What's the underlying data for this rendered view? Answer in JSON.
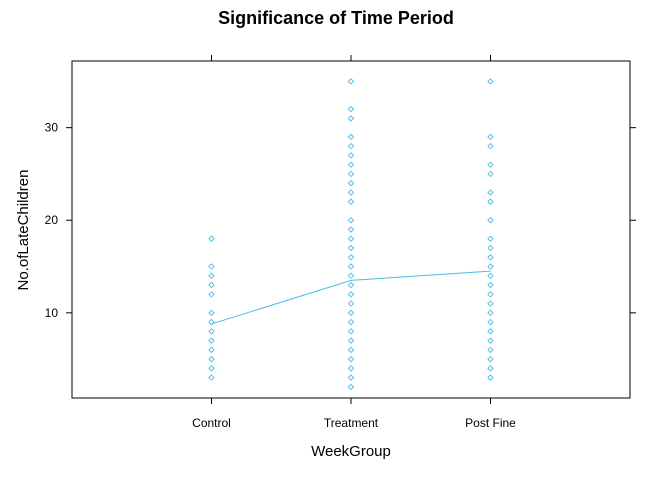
{
  "chart_data": {
    "type": "scatter",
    "title": "Significance of Time Period",
    "xlabel": "WeekGroup",
    "ylabel": "No.ofLateChildren",
    "categories": [
      "Control",
      "Treatment",
      "Post Fine"
    ],
    "ylim": [
      0.8,
      37.2
    ],
    "yticks": [
      10,
      20,
      30
    ],
    "grid": false,
    "color": "#4DBAE8",
    "points": [
      {
        "category": "Control",
        "values": [
          3,
          4,
          5,
          6,
          7,
          8,
          9,
          10,
          12,
          13,
          14,
          15,
          18
        ]
      },
      {
        "category": "Treatment",
        "values": [
          2,
          3,
          4,
          5,
          6,
          7,
          8,
          9,
          10,
          11,
          12,
          13,
          14,
          15,
          16,
          17,
          18,
          19,
          20,
          22,
          23,
          24,
          25,
          26,
          27,
          28,
          29,
          31,
          32,
          35
        ]
      },
      {
        "category": "Post Fine",
        "values": [
          3,
          4,
          5,
          6,
          7,
          8,
          9,
          10,
          11,
          12,
          13,
          14,
          15,
          16,
          17,
          18,
          20,
          22,
          23,
          25,
          26,
          28,
          29,
          35
        ]
      }
    ],
    "mean_line": [
      8.8,
      13.5,
      14.5
    ]
  }
}
